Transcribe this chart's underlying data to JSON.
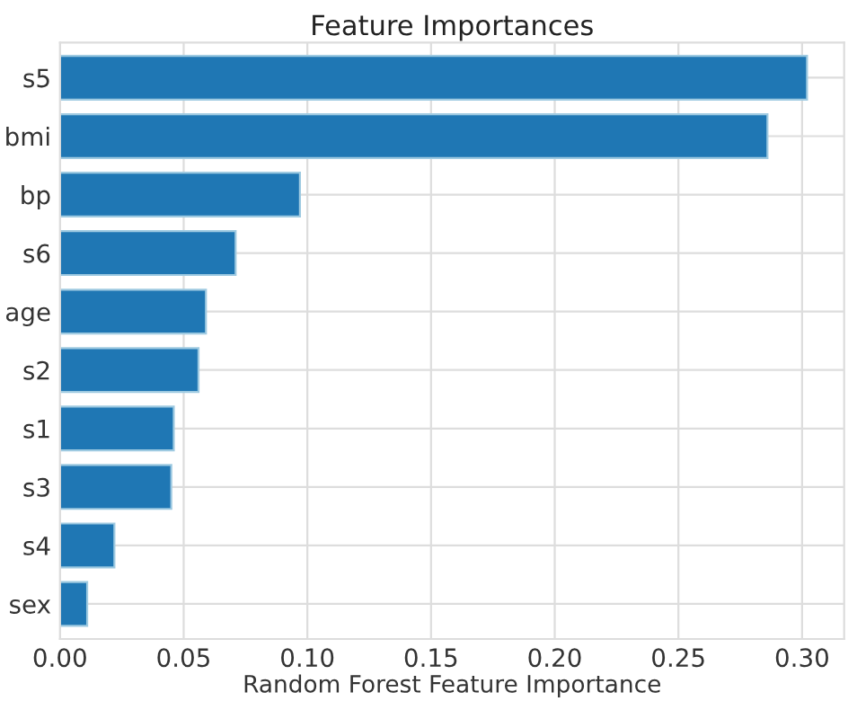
{
  "chart_data": {
    "type": "bar",
    "orientation": "horizontal",
    "title": "Feature Importances",
    "xlabel": "Random Forest Feature Importance",
    "categories": [
      "s5",
      "bmi",
      "bp",
      "s6",
      "age",
      "s2",
      "s1",
      "s3",
      "s4",
      "sex"
    ],
    "values": [
      0.302,
      0.286,
      0.097,
      0.071,
      0.059,
      0.056,
      0.046,
      0.045,
      0.022,
      0.011
    ],
    "color": "#1f77b4",
    "xlim": [
      0,
      0.317
    ],
    "xticks": [
      {
        "value": 0,
        "label": "0.00"
      },
      {
        "value": 0.05,
        "label": "0.05"
      },
      {
        "value": 0.1,
        "label": "0.10"
      },
      {
        "value": 0.15,
        "label": "0.15"
      },
      {
        "value": 0.2,
        "label": "0.20"
      },
      {
        "value": 0.25,
        "label": "0.25"
      },
      {
        "value": 0.3,
        "label": "0.30"
      }
    ],
    "grid": true
  }
}
